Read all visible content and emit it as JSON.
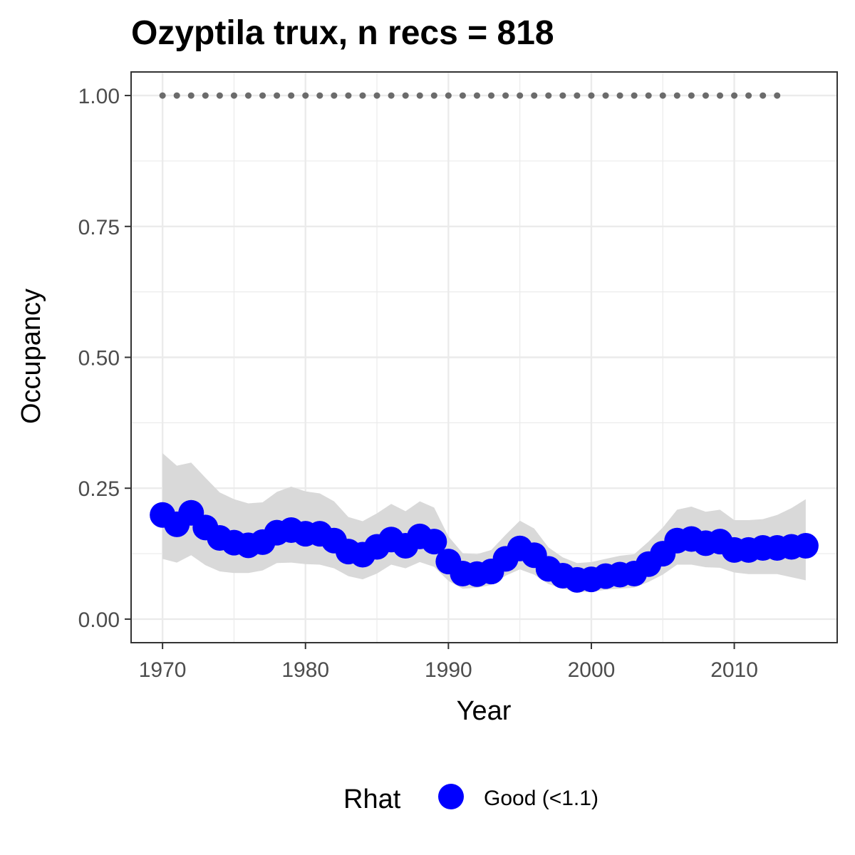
{
  "chart_data": {
    "type": "line",
    "title": "Ozyptila trux, n recs = 818",
    "xlabel": "Year",
    "ylabel": "Occupancy",
    "xlim": [
      1967.8,
      2017.2
    ],
    "ylim": [
      -0.045,
      1.045
    ],
    "x_ticks": [
      1970,
      1980,
      1990,
      2000,
      2010
    ],
    "x_tick_labels": [
      "1970",
      "1980",
      "1990",
      "2000",
      "2010"
    ],
    "y_ticks": [
      0,
      0.25,
      0.5,
      0.75,
      1.0
    ],
    "y_tick_labels": [
      "0.00",
      "0.25",
      "0.50",
      "0.75",
      "1.00"
    ],
    "grid": true,
    "legend": {
      "title": "Rhat",
      "position": "bottom",
      "entries": [
        {
          "label": "Good (<1.1)",
          "color": "#0000ff"
        }
      ]
    },
    "colors": {
      "points": "#0000ff",
      "ribbon": "#d9d9d9",
      "reference": "#6b6b6b",
      "panel_border": "#333333",
      "grid": "#ebebeb"
    },
    "series": [
      {
        "name": "Good (<1.1)",
        "x": [
          1970,
          1971,
          1972,
          1973,
          1974,
          1975,
          1976,
          1977,
          1978,
          1979,
          1980,
          1981,
          1982,
          1983,
          1984,
          1985,
          1986,
          1987,
          1988,
          1989,
          1990,
          1991,
          1992,
          1993,
          1994,
          1995,
          1996,
          1997,
          1998,
          1999,
          2000,
          2001,
          2002,
          2003,
          2004,
          2005,
          2006,
          2007,
          2008,
          2009,
          2010,
          2011,
          2012,
          2013,
          2014,
          2015
        ],
        "y": [
          0.199,
          0.181,
          0.203,
          0.175,
          0.155,
          0.146,
          0.141,
          0.147,
          0.165,
          0.17,
          0.163,
          0.163,
          0.15,
          0.129,
          0.123,
          0.138,
          0.152,
          0.14,
          0.158,
          0.148,
          0.11,
          0.087,
          0.086,
          0.091,
          0.115,
          0.135,
          0.122,
          0.096,
          0.083,
          0.075,
          0.076,
          0.082,
          0.085,
          0.087,
          0.105,
          0.125,
          0.15,
          0.153,
          0.145,
          0.148,
          0.132,
          0.132,
          0.136,
          0.136,
          0.138,
          0.14
        ],
        "lower": [
          0.115,
          0.108,
          0.122,
          0.103,
          0.091,
          0.088,
          0.088,
          0.093,
          0.107,
          0.108,
          0.105,
          0.104,
          0.097,
          0.082,
          0.076,
          0.087,
          0.104,
          0.097,
          0.109,
          0.1,
          0.073,
          0.058,
          0.06,
          0.065,
          0.083,
          0.095,
          0.085,
          0.067,
          0.058,
          0.052,
          0.052,
          0.056,
          0.058,
          0.06,
          0.071,
          0.085,
          0.104,
          0.104,
          0.099,
          0.098,
          0.089,
          0.086,
          0.086,
          0.086,
          0.08,
          0.074
        ],
        "upper": [
          0.317,
          0.293,
          0.299,
          0.27,
          0.242,
          0.229,
          0.221,
          0.223,
          0.243,
          0.253,
          0.244,
          0.24,
          0.225,
          0.195,
          0.187,
          0.202,
          0.22,
          0.206,
          0.225,
          0.213,
          0.158,
          0.126,
          0.124,
          0.132,
          0.161,
          0.188,
          0.173,
          0.137,
          0.118,
          0.107,
          0.109,
          0.115,
          0.121,
          0.124,
          0.148,
          0.175,
          0.209,
          0.215,
          0.205,
          0.209,
          0.189,
          0.189,
          0.191,
          0.199,
          0.212,
          0.229
        ]
      }
    ],
    "reference_points": {
      "x": [
        1970,
        1971,
        1972,
        1973,
        1974,
        1975,
        1976,
        1977,
        1978,
        1979,
        1980,
        1981,
        1982,
        1983,
        1984,
        1985,
        1986,
        1987,
        1988,
        1989,
        1990,
        1991,
        1992,
        1993,
        1994,
        1995,
        1996,
        1997,
        1998,
        1999,
        2000,
        2001,
        2002,
        2003,
        2004,
        2005,
        2006,
        2007,
        2008,
        2009,
        2010,
        2011,
        2012,
        2013
      ],
      "y": [
        1,
        1,
        1,
        1,
        1,
        1,
        1,
        1,
        1,
        1,
        1,
        1,
        1,
        1,
        1,
        1,
        1,
        1,
        1,
        1,
        1,
        1,
        1,
        1,
        1,
        1,
        1,
        1,
        1,
        1,
        1,
        1,
        1,
        1,
        1,
        1,
        1,
        1,
        1,
        1,
        1,
        1,
        1,
        1
      ]
    }
  }
}
